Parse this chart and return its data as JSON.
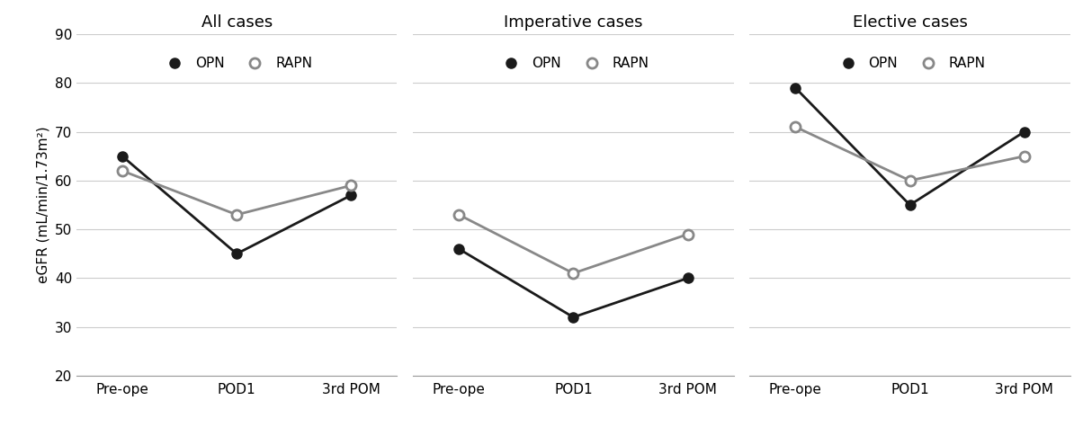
{
  "panels": [
    {
      "title": "All cases",
      "opn": [
        65,
        45,
        57
      ],
      "rapn": [
        62,
        53,
        59
      ]
    },
    {
      "title": "Imperative cases",
      "opn": [
        46,
        32,
        40
      ],
      "rapn": [
        53,
        41,
        49
      ]
    },
    {
      "title": "Elective cases",
      "opn": [
        79,
        55,
        70
      ],
      "rapn": [
        71,
        60,
        65
      ]
    }
  ],
  "x_labels": [
    "Pre-ope",
    "POD1",
    "3rd POM"
  ],
  "ylabel": "eGFR (mL/min/1.73m²)",
  "ylim": [
    20,
    90
  ],
  "yticks": [
    20,
    30,
    40,
    50,
    60,
    70,
    80,
    90
  ],
  "opn_color": "#1a1a1a",
  "rapn_color": "#888888",
  "marker_opn": "o",
  "marker_rapn": "o",
  "linewidth": 2.0,
  "markersize": 8,
  "legend_opn": "OPN",
  "legend_rapn": "RAPN",
  "background_color": "#ffffff",
  "grid_color": "#cccccc",
  "title_fontsize": 13,
  "label_fontsize": 11,
  "tick_fontsize": 11,
  "legend_fontsize": 11
}
